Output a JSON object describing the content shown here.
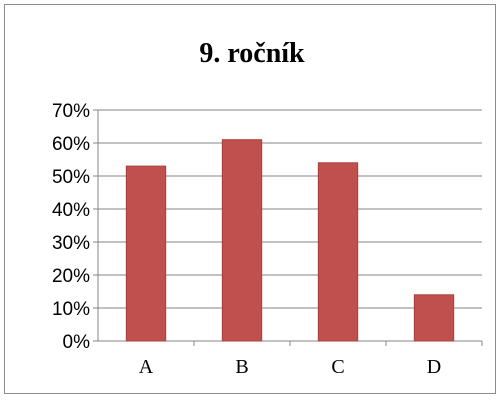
{
  "chart_data": {
    "type": "bar",
    "title": "9. ročník",
    "xlabel": "",
    "ylabel": "",
    "categories": [
      "A",
      "B",
      "C",
      "D"
    ],
    "values": [
      0.53,
      0.61,
      0.54,
      0.14
    ],
    "ylim": [
      0,
      0.7
    ],
    "yticks": [
      "0%",
      "10%",
      "20%",
      "30%",
      "40%",
      "50%",
      "60%",
      "70%"
    ],
    "grid": true,
    "legend": "none",
    "bar_color": "#c0504d",
    "bar_edge_color": "#a8403d",
    "grid_color": "#868686"
  }
}
